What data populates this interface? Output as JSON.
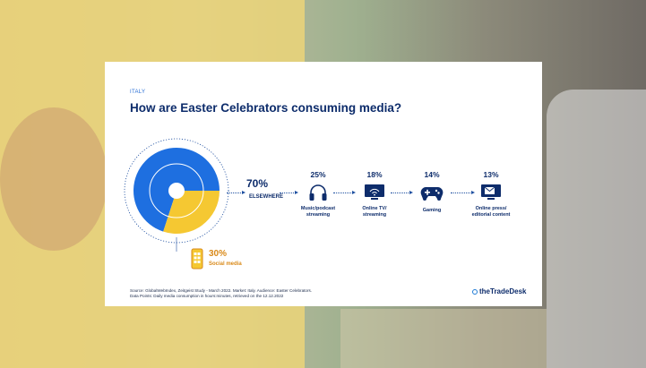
{
  "chart_data": {
    "type": "pie",
    "country": "ITALY",
    "title": "How are Easter Celebrators consuming media?",
    "slices": [
      {
        "label": "ELSEWHERE",
        "value": 70,
        "display": "70%",
        "color": "#1e6fe0"
      },
      {
        "label": "Social media",
        "value": 30,
        "display": "30%",
        "color": "#f5c832"
      }
    ],
    "breakdown": [
      {
        "label": "Music/podcast streaming",
        "value": 25,
        "display": "25%",
        "line1": "Music/podcast",
        "line2": "streaming"
      },
      {
        "label": "Online TV/ streaming",
        "value": 18,
        "display": "18%",
        "line1": "Online TV/",
        "line2": "streaming"
      },
      {
        "label": "Gaming",
        "value": 14,
        "display": "14%",
        "line1": "Gaming",
        "line2": ""
      },
      {
        "label": "Online press/ editorial content",
        "value": 13,
        "display": "13%",
        "line1": "Online press/",
        "line2": "editorial content"
      }
    ],
    "source_line1": "Source: GlobalWebIndex, Zeitgeist Study - March 2022. Market: Italy. Audience: Easter Celebrators.",
    "source_line2": "Data Points: Daily media consumption in hours:minutes, retrieved on the 12.12.2022"
  },
  "brand": "theTradeDesk",
  "colors": {
    "navy": "#0d2c6b",
    "blue": "#1e6fe0",
    "yellow": "#f5c832",
    "orange": "#d98a1a"
  }
}
